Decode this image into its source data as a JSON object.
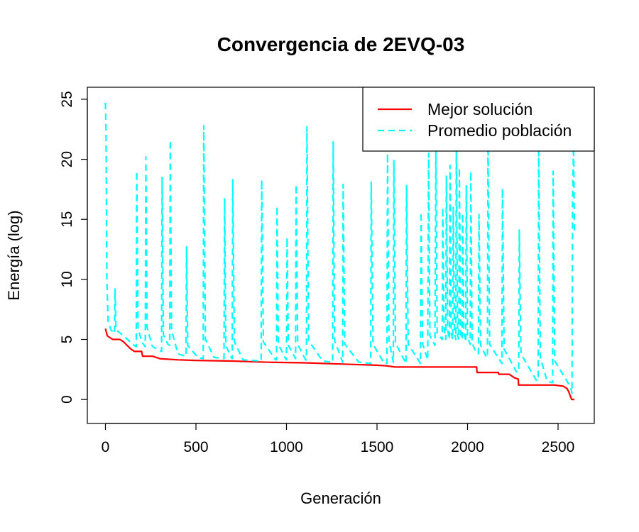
{
  "chart_data": {
    "type": "line",
    "title": "Convergencia de 2EVQ-03",
    "xlabel": "Generación",
    "ylabel": "Energía (log)",
    "xlim": [
      -100,
      2700
    ],
    "ylim": [
      -2,
      26
    ],
    "xticks": [
      0,
      500,
      1000,
      1500,
      2000,
      2500
    ],
    "yticks": [
      0,
      5,
      10,
      15,
      20,
      25
    ],
    "grid": false,
    "legend_position": "top-right",
    "series": [
      {
        "name": "Mejor solución",
        "color": "#ff0000",
        "style": "solid",
        "points": [
          [
            0,
            5.9
          ],
          [
            10,
            5.3
          ],
          [
            20,
            5.2
          ],
          [
            40,
            5.0
          ],
          [
            80,
            5.0
          ],
          [
            100,
            4.8
          ],
          [
            120,
            4.5
          ],
          [
            140,
            4.2
          ],
          [
            160,
            4.0
          ],
          [
            200,
            4.0
          ],
          [
            205,
            3.6
          ],
          [
            260,
            3.6
          ],
          [
            300,
            3.4
          ],
          [
            400,
            3.3
          ],
          [
            500,
            3.25
          ],
          [
            700,
            3.2
          ],
          [
            900,
            3.1
          ],
          [
            1100,
            3.05
          ],
          [
            1300,
            2.95
          ],
          [
            1500,
            2.85
          ],
          [
            1550,
            2.8
          ],
          [
            1600,
            2.7
          ],
          [
            2050,
            2.7
          ],
          [
            2052,
            2.25
          ],
          [
            2170,
            2.25
          ],
          [
            2172,
            2.1
          ],
          [
            2230,
            2.1
          ],
          [
            2260,
            1.8
          ],
          [
            2280,
            1.7
          ],
          [
            2282,
            1.2
          ],
          [
            2480,
            1.2
          ],
          [
            2530,
            1.1
          ],
          [
            2550,
            0.9
          ],
          [
            2560,
            0.6
          ],
          [
            2575,
            0.0
          ],
          [
            2590,
            0.0
          ]
        ]
      },
      {
        "name": "Promedio población",
        "color": "#00ffff",
        "style": "dashed",
        "points": [
          [
            0,
            24.7
          ],
          [
            3,
            22.5
          ],
          [
            8,
            10.0
          ],
          [
            15,
            6.5
          ],
          [
            30,
            5.8
          ],
          [
            50,
            5.5
          ],
          [
            53,
            9.2
          ],
          [
            58,
            5.8
          ],
          [
            100,
            5.3
          ],
          [
            150,
            4.6
          ],
          [
            170,
            4.4
          ],
          [
            173,
            19.0
          ],
          [
            180,
            6.0
          ],
          [
            200,
            4.8
          ],
          [
            220,
            4.4
          ],
          [
            223,
            20.2
          ],
          [
            230,
            6.0
          ],
          [
            260,
            4.4
          ],
          [
            310,
            4.0
          ],
          [
            313,
            18.5
          ],
          [
            320,
            5.4
          ],
          [
            345,
            4.6
          ],
          [
            355,
            4.5
          ],
          [
            358,
            21.6
          ],
          [
            365,
            5.8
          ],
          [
            400,
            3.8
          ],
          [
            445,
            3.6
          ],
          [
            448,
            12.7
          ],
          [
            455,
            4.5
          ],
          [
            510,
            3.5
          ],
          [
            540,
            3.4
          ],
          [
            543,
            22.8
          ],
          [
            552,
            5.0
          ],
          [
            600,
            3.5
          ],
          [
            655,
            3.4
          ],
          [
            658,
            16.7
          ],
          [
            665,
            4.5
          ],
          [
            695,
            3.5
          ],
          [
            700,
            3.4
          ],
          [
            703,
            18.3
          ],
          [
            712,
            4.8
          ],
          [
            760,
            3.3
          ],
          [
            860,
            3.2
          ],
          [
            863,
            18.3
          ],
          [
            872,
            4.8
          ],
          [
            940,
            3.3
          ],
          [
            945,
            3.3
          ],
          [
            948,
            16.1
          ],
          [
            955,
            4.6
          ],
          [
            995,
            3.4
          ],
          [
            1000,
            3.3
          ],
          [
            1003,
            13.5
          ],
          [
            1010,
            4.5
          ],
          [
            1050,
            3.4
          ],
          [
            1053,
            17.9
          ],
          [
            1062,
            4.6
          ],
          [
            1105,
            3.3
          ],
          [
            1110,
            3.3
          ],
          [
            1113,
            22.7
          ],
          [
            1122,
            4.9
          ],
          [
            1200,
            3.2
          ],
          [
            1255,
            3.1
          ],
          [
            1258,
            21.5
          ],
          [
            1266,
            4.9
          ],
          [
            1310,
            3.1
          ],
          [
            1313,
            17.9
          ],
          [
            1322,
            4.6
          ],
          [
            1400,
            3.1
          ],
          [
            1465,
            3.0
          ],
          [
            1468,
            18.1
          ],
          [
            1478,
            4.6
          ],
          [
            1540,
            3.0
          ],
          [
            1555,
            3.0
          ],
          [
            1558,
            20.5
          ],
          [
            1566,
            4.9
          ],
          [
            1590,
            3.1
          ],
          [
            1593,
            19.9
          ],
          [
            1602,
            4.7
          ],
          [
            1660,
            3.0
          ],
          [
            1663,
            17.8
          ],
          [
            1672,
            4.6
          ],
          [
            1740,
            3.0
          ],
          [
            1743,
            15.6
          ],
          [
            1752,
            4.6
          ],
          [
            1780,
            3.3
          ],
          [
            1785,
            20.5
          ],
          [
            1792,
            5.3
          ],
          [
            1820,
            4.5
          ],
          [
            1825,
            21.5
          ],
          [
            1832,
            5.5
          ],
          [
            1860,
            5.0
          ],
          [
            1863,
            16.0
          ],
          [
            1870,
            6.0
          ],
          [
            1880,
            5.0
          ],
          [
            1883,
            18.6
          ],
          [
            1890,
            5.8
          ],
          [
            1900,
            5.0
          ],
          [
            1903,
            19.5
          ],
          [
            1910,
            5.5
          ],
          [
            1918,
            5.0
          ],
          [
            1921,
            16.0
          ],
          [
            1928,
            5.6
          ],
          [
            1935,
            5.0
          ],
          [
            1938,
            21.0
          ],
          [
            1945,
            5.3
          ],
          [
            1952,
            5.0
          ],
          [
            1955,
            19.3
          ],
          [
            1962,
            5.5
          ],
          [
            1970,
            5.0
          ],
          [
            1973,
            15.5
          ],
          [
            1980,
            5.5
          ],
          [
            1990,
            4.8
          ],
          [
            1993,
            17.8
          ],
          [
            2000,
            5.2
          ],
          [
            2015,
            4.6
          ],
          [
            2018,
            19.0
          ],
          [
            2025,
            4.7
          ],
          [
            2045,
            4.0
          ],
          [
            2060,
            3.8
          ],
          [
            2063,
            15.4
          ],
          [
            2072,
            4.5
          ],
          [
            2105,
            3.5
          ],
          [
            2110,
            3.5
          ],
          [
            2113,
            22.0
          ],
          [
            2122,
            4.6
          ],
          [
            2190,
            3.0
          ],
          [
            2193,
            17.6
          ],
          [
            2202,
            4.2
          ],
          [
            2270,
            2.3
          ],
          [
            2283,
            2.3
          ],
          [
            2286,
            14.1
          ],
          [
            2295,
            3.8
          ],
          [
            2380,
            1.6
          ],
          [
            2390,
            1.6
          ],
          [
            2393,
            21.5
          ],
          [
            2402,
            3.5
          ],
          [
            2440,
            1.5
          ],
          [
            2470,
            1.4
          ],
          [
            2473,
            19.0
          ],
          [
            2482,
            3.2
          ],
          [
            2570,
            1.0
          ],
          [
            2577,
            0.5
          ],
          [
            2580,
            16.5
          ],
          [
            2586,
            21.5
          ],
          [
            2590,
            14.0
          ]
        ]
      }
    ]
  }
}
